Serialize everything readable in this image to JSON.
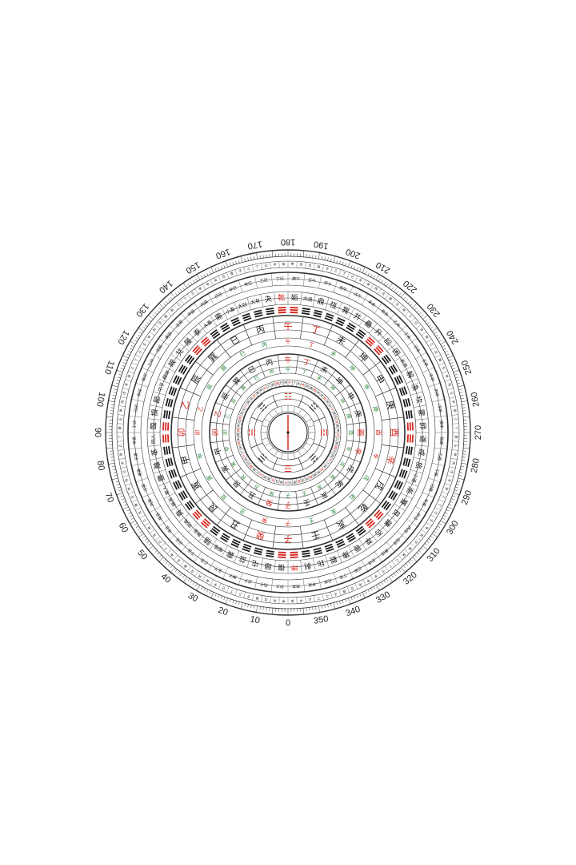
{
  "compass": {
    "degree_scale": {
      "labels": [
        "0",
        "10",
        "20",
        "30",
        "40",
        "50",
        "60",
        "70",
        "80",
        "90",
        "100",
        "110",
        "120",
        "130",
        "140",
        "150",
        "160",
        "170",
        "180",
        "190",
        "200",
        "210",
        "220",
        "230",
        "240",
        "250",
        "260",
        "270",
        "280",
        "290",
        "300",
        "310",
        "320",
        "330",
        "340",
        "350"
      ],
      "start_value": 0,
      "step": 10
    },
    "hexagram_ring_top": [
      "姤",
      "大過",
      "鼎",
      "恆",
      "巽",
      "井",
      "蠱",
      "升",
      "訟",
      "困",
      "未濟",
      "解",
      "渙",
      "坎",
      "蒙",
      "師",
      "遯",
      "咸",
      "旅",
      "小過",
      "漸",
      "蹇",
      "艮",
      "謙",
      "否",
      "萃",
      "晉",
      "豫",
      "觀",
      "比",
      "剝",
      "坤"
    ],
    "hexagram_ring_bottom": [
      "復",
      "頤",
      "屯",
      "益",
      "震",
      "噬嗑",
      "隨",
      "無妄",
      "明夷",
      "賁",
      "既濟",
      "家人",
      "豐",
      "離",
      "革",
      "同人",
      "臨",
      "損",
      "節",
      "中孚",
      "歸妹",
      "睽",
      "兌",
      "履",
      "泰",
      "大畜",
      "需",
      "小畜",
      "大壯",
      "大有",
      "夬",
      "乾"
    ],
    "mountains_24": [
      "子",
      "癸",
      "丑",
      "艮",
      "寅",
      "甲",
      "卯",
      "乙",
      "辰",
      "巽",
      "巳",
      "丙",
      "午",
      "丁",
      "未",
      "坤",
      "申",
      "庚",
      "酉",
      "辛",
      "戌",
      "乾",
      "亥",
      "壬"
    ],
    "mountains_inner": [
      "子",
      "癸",
      "丑",
      "艮",
      "寅",
      "甲",
      "卯",
      "乙",
      "辰",
      "巽",
      "巳",
      "丙",
      "午",
      "丁",
      "未",
      "坤",
      "申",
      "庚",
      "酉",
      "辛",
      "戌",
      "乾",
      "亥",
      "壬"
    ],
    "small_ring_a": [
      "甲子",
      "丙子",
      "戊子",
      "庚子",
      "壬子",
      "乙丑",
      "丁丑",
      "己丑",
      "辛丑",
      "癸丑",
      "丙寅",
      "戊寅",
      "庚寅",
      "壬寅",
      "甲寅",
      "丁卯",
      "己卯",
      "辛卯",
      "癸卯",
      "乙卯",
      "戊辰",
      "庚辰",
      "壬辰",
      "甲辰",
      "丙辰",
      "己巳",
      "辛巳",
      "癸巳",
      "乙巳",
      "丁巳"
    ],
    "small_ring_b": [
      "庚午",
      "壬午",
      "甲午",
      "丙午",
      "戊午",
      "辛未",
      "癸未",
      "乙未",
      "丁未",
      "己未",
      "壬申",
      "甲申",
      "丙申",
      "戊申",
      "庚申",
      "癸酉",
      "乙酉",
      "丁酉",
      "己酉",
      "辛酉",
      "甲戌",
      "丙戌",
      "戊戌",
      "庚戌",
      "壬戌",
      "乙亥",
      "丁亥",
      "己亥",
      "辛亥",
      "癸亥"
    ],
    "bagua_center": [
      "☰",
      "☴",
      "☵",
      "☶",
      "☷",
      "☳",
      "☲",
      "☱"
    ],
    "colors": {
      "ink": "#1a1a1a",
      "red": "#d8281f",
      "green": "#2e8b3e",
      "ring_line": "#333333"
    },
    "red_mountains": [
      "午",
      "子",
      "卯",
      "酉",
      "乙",
      "辛",
      "丁",
      "癸"
    ]
  }
}
